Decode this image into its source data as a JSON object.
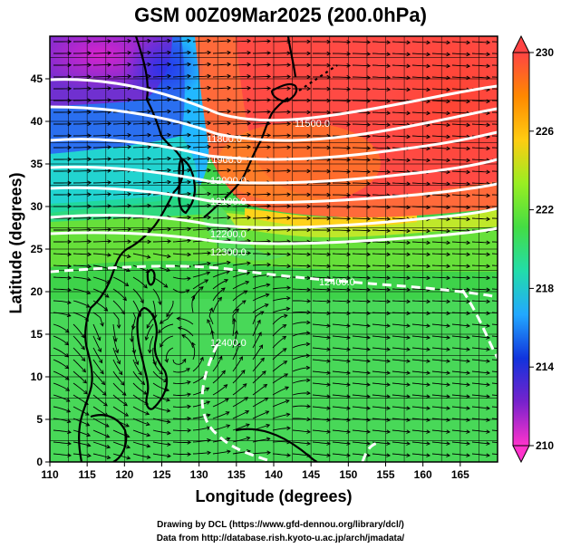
{
  "title": "GSM 00Z09Mar2025 (200.0hPa)",
  "xaxis": {
    "label": "Longitude (degrees)",
    "range": [
      110,
      170
    ],
    "ticks": [
      110,
      115,
      120,
      125,
      130,
      135,
      140,
      145,
      150,
      155,
      160,
      165
    ]
  },
  "yaxis": {
    "label": "Latitude  (degrees)",
    "range": [
      0,
      50
    ],
    "ticks": [
      0,
      5,
      10,
      15,
      20,
      25,
      30,
      35,
      40,
      45
    ]
  },
  "colorbar": {
    "range": [
      210,
      230
    ],
    "ticks": [
      210,
      214,
      218,
      222,
      226,
      230
    ],
    "colors": [
      "#ff33cc",
      "#7722cc",
      "#1133dd",
      "#22a8ff",
      "#22ddaa",
      "#44dd44",
      "#99ee22",
      "#ffcc11",
      "#ff8800",
      "#ff4444"
    ]
  },
  "contour_labels": [
    "11500.0",
    "11800.0",
    "11900.0",
    "12000.0",
    "12100.0",
    "12200.0",
    "12300.0",
    "12400.0"
  ],
  "credits": {
    "line1": "Drawing by DCL (https://www.gfd-dennou.org/library/dcl/)",
    "line2": "Data from http://database.rish.kyoto-u.ac.jp/arch/jmadata/"
  }
}
